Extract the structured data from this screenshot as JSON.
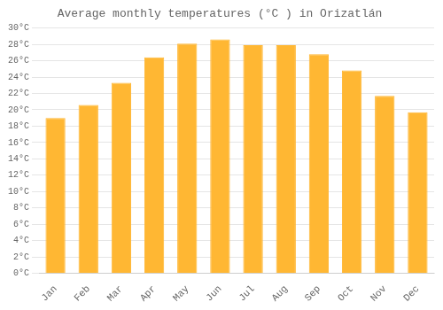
{
  "chart_data": {
    "type": "bar",
    "title": "Average monthly temperatures (°C ) in Orizatlán",
    "categories": [
      "Jan",
      "Feb",
      "Mar",
      "Apr",
      "May",
      "Jun",
      "Jul",
      "Aug",
      "Sep",
      "Oct",
      "Nov",
      "Dec"
    ],
    "values": [
      19.0,
      20.6,
      23.3,
      26.4,
      28.1,
      28.6,
      27.9,
      27.9,
      26.8,
      24.8,
      21.7,
      19.7
    ],
    "color": "#FFB733",
    "ylim": [
      0,
      30
    ],
    "yticks": [
      {
        "value": 0,
        "label": "0°C"
      },
      {
        "value": 2,
        "label": "2°C"
      },
      {
        "value": 4,
        "label": "4°C"
      },
      {
        "value": 6,
        "label": "6°C"
      },
      {
        "value": 8,
        "label": "8°C"
      },
      {
        "value": 10,
        "label": "10°C"
      },
      {
        "value": 12,
        "label": "12°C"
      },
      {
        "value": 14,
        "label": "14°C"
      },
      {
        "value": 16,
        "label": "16°C"
      },
      {
        "value": 18,
        "label": "18°C"
      },
      {
        "value": 20,
        "label": "20°C"
      },
      {
        "value": 22,
        "label": "22°C"
      },
      {
        "value": 24,
        "label": "24°C"
      },
      {
        "value": 26,
        "label": "26°C"
      },
      {
        "value": 28,
        "label": "28°C"
      },
      {
        "value": 30,
        "label": "30°C"
      }
    ],
    "grid": true
  }
}
